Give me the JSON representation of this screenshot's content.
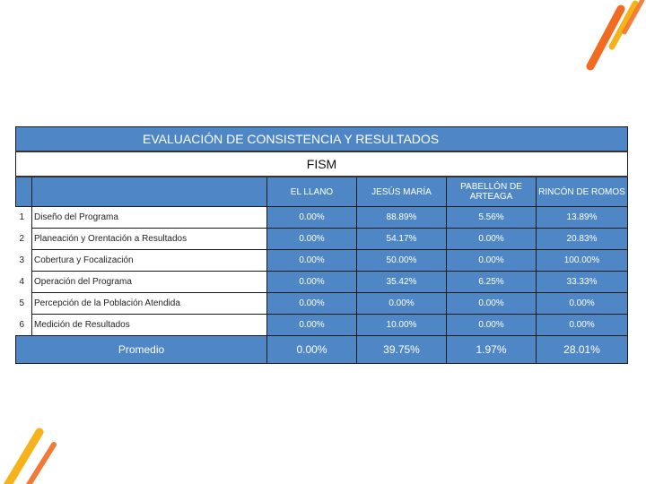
{
  "table": {
    "title": "EVALUACIÓN DE CONSISTENCIA Y RESULTADOS",
    "subtitle": "FISM",
    "columns": [
      "EL LLANO",
      "JESÚS MARÍA",
      "PABELLÓN DE ARTEAGA",
      "RINCÓN DE ROMOS"
    ],
    "rows": [
      {
        "no": "1",
        "label": "Diseño del Programa",
        "values": [
          "0.00%",
          "88.89%",
          "5.56%",
          "13.89%"
        ]
      },
      {
        "no": "2",
        "label": "Planeación y Orentación a Resultados",
        "values": [
          "0.00%",
          "54.17%",
          "0.00%",
          "20.83%"
        ]
      },
      {
        "no": "3",
        "label": "Cobertura y Focalización",
        "values": [
          "0.00%",
          "50.00%",
          "0.00%",
          "100.00%"
        ]
      },
      {
        "no": "4",
        "label": "Operación del Programa",
        "values": [
          "0.00%",
          "35.42%",
          "6.25%",
          "33.33%"
        ]
      },
      {
        "no": "5",
        "label": "Percepción de la Población Atendida",
        "values": [
          "0.00%",
          "0.00%",
          "0.00%",
          "0.00%"
        ]
      },
      {
        "no": "6",
        "label": "Medición de Resultados",
        "values": [
          "0.00%",
          "10.00%",
          "0.00%",
          "0.00%"
        ]
      }
    ],
    "average": {
      "label": "Promedio",
      "values": [
        "0.00%",
        "39.75%",
        "1.97%",
        "28.01%"
      ]
    }
  },
  "colors": {
    "header_blue": "#4f87c6",
    "accent_orange": "#f26b21",
    "accent_yellow": "#f6b21a"
  }
}
